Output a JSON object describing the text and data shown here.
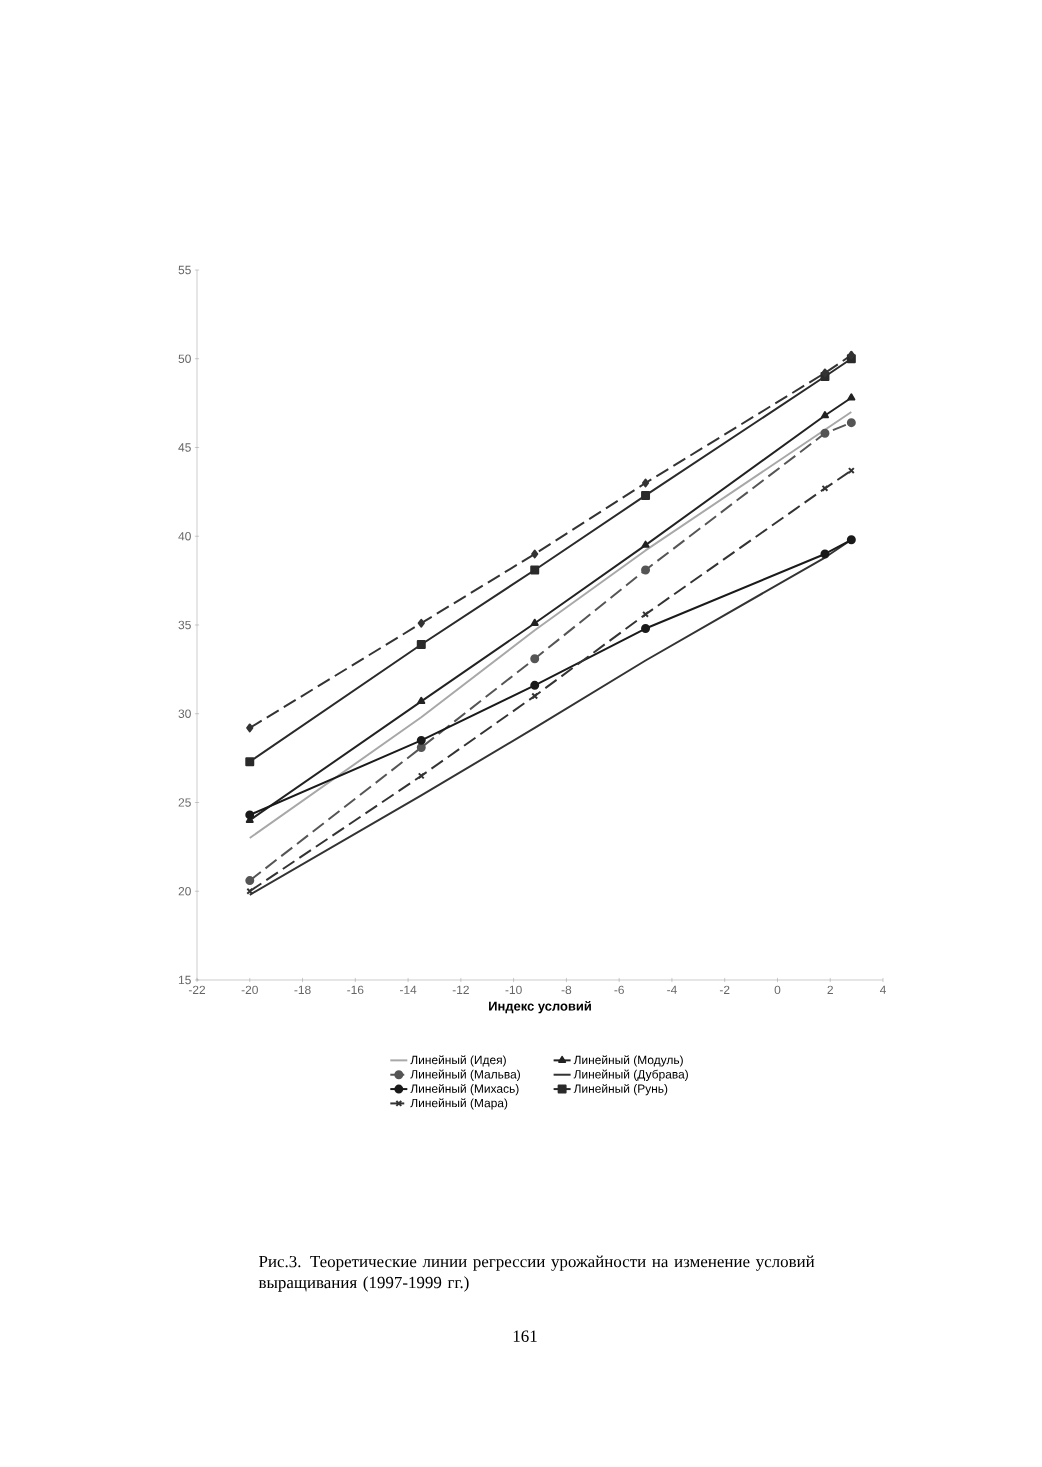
{
  "chart_data": {
    "type": "line",
    "xlabel": "Индекс условий",
    "x": [
      -20,
      -13.5,
      -9.2,
      -5,
      1.8,
      2.8
    ],
    "xlim": [
      -22,
      4
    ],
    "xticks": [
      -22,
      -20,
      -18,
      -16,
      -14,
      -12,
      -10,
      -8,
      -6,
      -4,
      -2,
      0,
      2,
      4
    ],
    "ylim": [
      15,
      55
    ],
    "yticks": [
      15,
      20,
      25,
      30,
      35,
      40,
      45,
      50,
      55
    ],
    "legend": "bottom",
    "series": [
      {
        "name": "Линейный (Идея)",
        "color": "#a8a8a8",
        "line_style": "solid",
        "marker": "none",
        "values": [
          23.0,
          29.8,
          34.7,
          39.2,
          46.0,
          47.0
        ]
      },
      {
        "name": "Линейный (Модуль)",
        "color": "#222222",
        "line_style": "solid",
        "marker": "triangle",
        "values": [
          24.0,
          30.7,
          35.1,
          39.5,
          46.8,
          47.8
        ]
      },
      {
        "name": "Линейный (Мальва)",
        "color": "#555555",
        "line_style": "dashed",
        "marker": "circle",
        "values": [
          20.6,
          28.1,
          33.1,
          38.1,
          45.8,
          46.4
        ]
      },
      {
        "name": "Линейный (Дубрава)",
        "color": "#333333",
        "line_style": "solid",
        "marker": "none",
        "values": [
          19.8,
          25.4,
          29.2,
          33.0,
          38.8,
          39.8
        ]
      },
      {
        "name": "Линейный (Михась)",
        "color": "#1a1a1a",
        "line_style": "solid",
        "marker": "circle",
        "values": [
          24.3,
          28.5,
          31.6,
          34.8,
          39.0,
          39.8
        ]
      },
      {
        "name": "Линейный (Рунь)",
        "color": "#2a2a2a",
        "line_style": "solid",
        "marker": "square",
        "values": [
          27.3,
          33.9,
          38.1,
          42.3,
          49.0,
          50.0
        ]
      },
      {
        "name": "Линейный (Мара)",
        "color": "#333333",
        "line_style": "dashed",
        "marker": "cross",
        "values": [
          20.0,
          26.5,
          31.0,
          35.6,
          42.7,
          43.7
        ]
      },
      {
        "color": "#333333",
        "line_style": "dashed",
        "marker": "diamond",
        "values": [
          29.2,
          35.1,
          39.0,
          43.0,
          49.2,
          50.2
        ]
      }
    ],
    "annotations": [
      "Рис.3. Теоретические линии регрессии урожайности на изменение условий выращивания (1997-1999 гг.)",
      "161"
    ]
  }
}
